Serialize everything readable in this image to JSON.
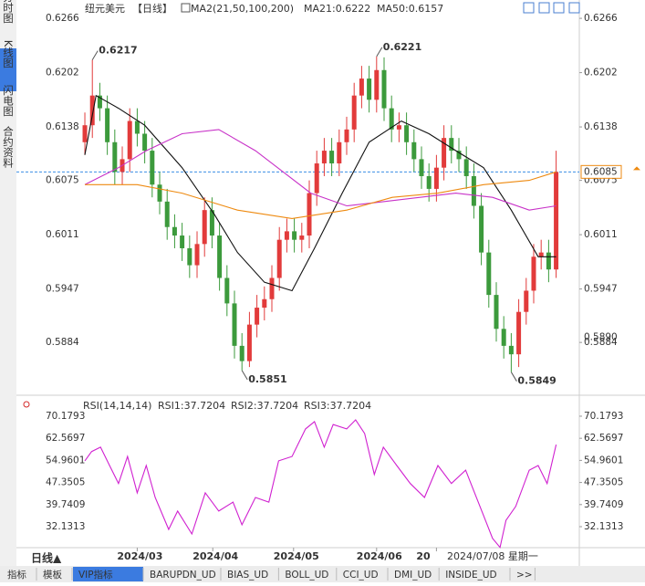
{
  "sidebar": {
    "tabs": [
      "分时图",
      "K线图",
      "闪电图",
      "合约资料"
    ],
    "active": 1
  },
  "chart_data": [
    {
      "type": "candlestick",
      "title": "纽元美元",
      "period": "【日线】",
      "indicator": "MA2(21,50,100,200)",
      "indicator_values": [
        {
          "text": "MA21:0.6222",
          "color": "#222222"
        },
        {
          "text": "MA50:0.6157",
          "color": "#2a4fd8"
        }
      ],
      "up_color": "#e23b3b",
      "down_color": "#3c9a3c",
      "open": [
        0.612,
        0.614,
        0.6175,
        0.616,
        0.612,
        0.6085,
        0.61,
        0.6145,
        0.613,
        0.611,
        0.607,
        0.605,
        0.602,
        0.601,
        0.5995,
        0.5975,
        0.6,
        0.604,
        0.601,
        0.596,
        0.593,
        0.588,
        0.5862,
        0.5905,
        0.5925,
        0.5935,
        0.596,
        0.6005,
        0.6015,
        0.6005,
        0.601,
        0.606,
        0.6095,
        0.611,
        0.6095,
        0.612,
        0.6135,
        0.6175,
        0.6195,
        0.617,
        0.6205,
        0.616,
        0.6135,
        0.614,
        0.612,
        0.61,
        0.608,
        0.6065,
        0.609,
        0.6125,
        0.611,
        0.61,
        0.608,
        0.6045,
        0.599,
        0.594,
        0.59,
        0.588,
        0.587,
        0.592,
        0.5945,
        0.5985,
        0.599,
        0.597
      ],
      "high": [
        0.6155,
        0.6217,
        0.619,
        0.6175,
        0.6135,
        0.6115,
        0.616,
        0.616,
        0.6145,
        0.6125,
        0.6085,
        0.6065,
        0.6035,
        0.6025,
        0.601,
        0.6015,
        0.6055,
        0.6055,
        0.6025,
        0.5975,
        0.5945,
        0.5895,
        0.592,
        0.594,
        0.595,
        0.5975,
        0.602,
        0.603,
        0.603,
        0.6025,
        0.6075,
        0.611,
        0.6125,
        0.6125,
        0.6135,
        0.615,
        0.619,
        0.621,
        0.621,
        0.6221,
        0.622,
        0.6175,
        0.6155,
        0.6155,
        0.6135,
        0.6115,
        0.6095,
        0.6105,
        0.614,
        0.614,
        0.6125,
        0.6115,
        0.6095,
        0.606,
        0.6005,
        0.5955,
        0.5915,
        0.5895,
        0.5935,
        0.596,
        0.6,
        0.6005,
        0.6005,
        0.611
      ],
      "low": [
        0.6105,
        0.6125,
        0.6145,
        0.6105,
        0.607,
        0.607,
        0.6085,
        0.6115,
        0.6095,
        0.6055,
        0.6035,
        0.6005,
        0.5995,
        0.598,
        0.596,
        0.596,
        0.5985,
        0.5995,
        0.5945,
        0.5915,
        0.5865,
        0.5851,
        0.5855,
        0.589,
        0.591,
        0.592,
        0.5945,
        0.599,
        0.599,
        0.599,
        0.5995,
        0.6045,
        0.608,
        0.608,
        0.608,
        0.6105,
        0.612,
        0.616,
        0.6155,
        0.6155,
        0.6145,
        0.612,
        0.612,
        0.6105,
        0.6085,
        0.6065,
        0.605,
        0.605,
        0.6075,
        0.6095,
        0.6085,
        0.6065,
        0.603,
        0.5975,
        0.5925,
        0.5885,
        0.5865,
        0.5849,
        0.5855,
        0.5905,
        0.593,
        0.597,
        0.5955,
        0.596
      ],
      "close": [
        0.614,
        0.6175,
        0.616,
        0.612,
        0.6085,
        0.61,
        0.6145,
        0.613,
        0.611,
        0.607,
        0.605,
        0.602,
        0.601,
        0.5995,
        0.5975,
        0.6,
        0.604,
        0.601,
        0.596,
        0.593,
        0.588,
        0.5862,
        0.5905,
        0.5925,
        0.5935,
        0.596,
        0.6005,
        0.6015,
        0.6005,
        0.601,
        0.606,
        0.6095,
        0.611,
        0.6095,
        0.612,
        0.6135,
        0.6175,
        0.6195,
        0.617,
        0.6205,
        0.616,
        0.6135,
        0.614,
        0.612,
        0.61,
        0.608,
        0.6065,
        0.609,
        0.6125,
        0.611,
        0.61,
        0.608,
        0.6045,
        0.599,
        0.594,
        0.59,
        0.588,
        0.587,
        0.592,
        0.5945,
        0.5985,
        0.599,
        0.597,
        0.6085
      ],
      "series": [
        {
          "color": "#111111",
          "x": [
            0,
            1.5,
            4.5,
            8,
            13,
            17.3,
            20.4,
            24,
            27.7,
            30.7,
            34.4,
            38,
            42.3,
            46,
            49.6,
            53.3,
            57,
            60.6,
            63
          ],
          "values": [
            0.6105,
            0.6175,
            0.616,
            0.614,
            0.609,
            0.6035,
            0.599,
            0.5955,
            0.5945,
            0.5995,
            0.606,
            0.612,
            0.6145,
            0.613,
            0.611,
            0.609,
            0.604,
            0.5985,
            0.5985
          ]
        },
        {
          "color": "#c832c8",
          "x": [
            0,
            4.5,
            8.2,
            13,
            17.9,
            22.8,
            26.5,
            30.2,
            35,
            39.9,
            44.8,
            49.6,
            54.5,
            59.4,
            63
          ],
          "values": [
            0.607,
            0.609,
            0.611,
            0.613,
            0.6135,
            0.611,
            0.6085,
            0.606,
            0.6045,
            0.605,
            0.6055,
            0.606,
            0.6055,
            0.604,
            0.6045
          ]
        },
        {
          "color": "#ee8a10",
          "x": [
            0,
            7,
            13,
            20.4,
            27.7,
            35,
            41.1,
            47.2,
            53.3,
            59.4,
            63
          ],
          "values": [
            0.607,
            0.607,
            0.606,
            0.604,
            0.603,
            0.604,
            0.6055,
            0.606,
            0.607,
            0.6075,
            0.6085
          ]
        }
      ],
      "xlim": [
        -9.15,
        66.1
      ],
      "ylim": [
        0.5825,
        0.6279
      ],
      "yticks": [
        0.6266,
        0.6202,
        0.6138,
        0.6075,
        0.6011,
        0.5947,
        0.5884
      ],
      "annotations": [
        {
          "x": 1,
          "value": 0.6217,
          "color": "#d42a2a"
        },
        {
          "x": 39,
          "value": 0.6221,
          "color": "#d42a2a"
        },
        {
          "x": 21,
          "value": 0.5851,
          "color": "#3c9a3c"
        },
        {
          "x": 57,
          "value": 0.5849,
          "color": "#3c9a3c"
        }
      ],
      "last_price": 0.6085,
      "marker_price": {
        "value": 0.589,
        "label": "0.5890"
      }
    },
    {
      "type": "line",
      "title": "RSI(14,14,14)",
      "legend": [
        {
          "text": "RSI1:37.7204",
          "color": "#222222"
        },
        {
          "text": "RSI2:37.7204",
          "color": "#2a4fd8"
        },
        {
          "text": "RSI3:37.7204",
          "color": "#d020d0"
        }
      ],
      "series": [
        {
          "color": "#d020d0",
          "x": [
            0,
            0.9,
            2.1,
            3.3,
            4.5,
            5.7,
            7,
            8.2,
            9.4,
            11.2,
            12.4,
            14.3,
            16.1,
            17.9,
            19.8,
            21,
            22.8,
            24.6,
            25.9,
            27.7,
            29.5,
            30.7,
            32,
            33.2,
            35,
            36.2,
            37.4,
            38.7,
            39.9,
            41.7,
            43.5,
            45.4,
            47.2,
            49,
            50.9,
            52.1,
            53.3,
            54.5,
            55.5,
            56.3,
            57.6,
            59.4,
            60.6,
            61.8,
            63
          ],
          "values": [
            54.8,
            58,
            59.5,
            53.2,
            47,
            56.3,
            43.8,
            53.2,
            42.2,
            31.2,
            37.5,
            29.6,
            43.8,
            37.5,
            40.6,
            32.8,
            42.2,
            40.6,
            54.8,
            56.3,
            65.8,
            68.3,
            59.5,
            67.3,
            65.8,
            68.9,
            64.2,
            50.1,
            59.5,
            53.2,
            47,
            42.2,
            53.2,
            47,
            51.6,
            43.8,
            36,
            28.1,
            25,
            34.3,
            39.1,
            51.6,
            53.2,
            47,
            60.4
          ]
        }
      ],
      "xlim": [
        -9.15,
        66.1
      ],
      "ylim": [
        24.9,
        75.2
      ],
      "yticks": [
        70.1793,
        62.5697,
        54.9601,
        47.3505,
        39.7409,
        32.1313
      ],
      "xticks": [
        {
          "value": 7,
          "label": "2024/03"
        },
        {
          "value": 17.1,
          "label": "2024/04"
        },
        {
          "value": 27.9,
          "label": "2024/05"
        },
        {
          "value": 39,
          "label": "2024/06"
        },
        {
          "value": 47,
          "label": "20"
        }
      ],
      "crosshair_label": "2024/07/08 星期一"
    }
  ],
  "bottom": {
    "period": "日线▲",
    "tabs": [
      "指标",
      "模板",
      "VIP指标",
      "BARUPDN_UD",
      "BIAS_UD",
      "BOLL_UD",
      "CCI_UD",
      "DMI_UD",
      "INSIDE_UD",
      ">>"
    ],
    "active": 2
  }
}
